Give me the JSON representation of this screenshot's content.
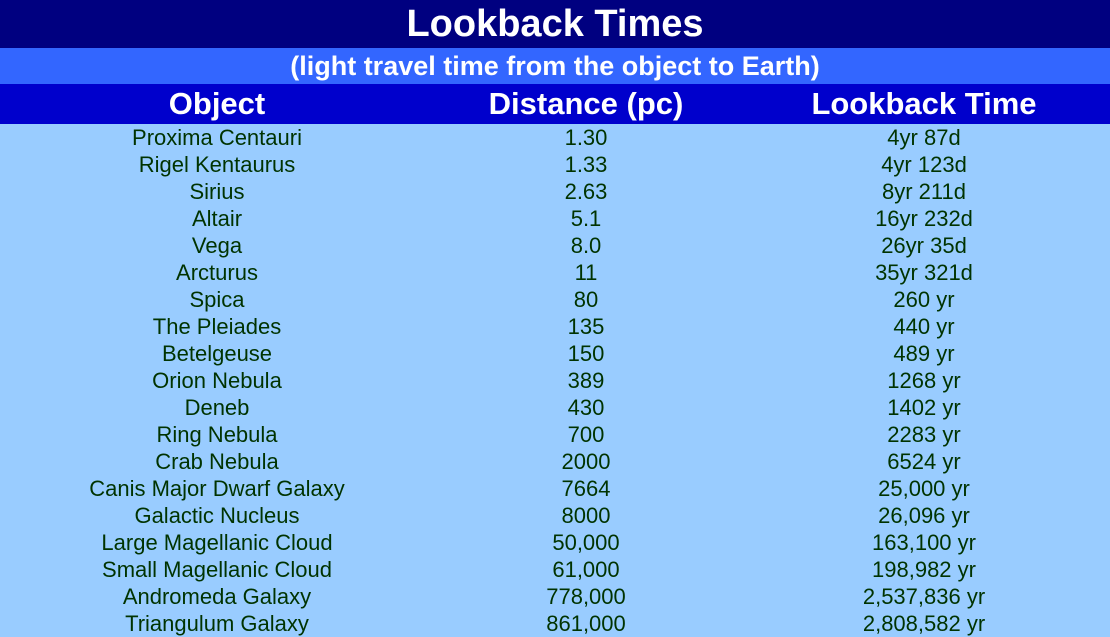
{
  "title": "Lookback Times",
  "subtitle": "(light travel time from the object to Earth)",
  "headers": {
    "object": "Object",
    "distance": "Distance (pc)",
    "lookback": "Lookback Time"
  },
  "colors": {
    "title_bg": "#000080",
    "subtitle_bg": "#3366ff",
    "header_bg": "#0000cc",
    "body_bg": "#99ccff",
    "body_text": "#003300",
    "header_text": "#ffffff"
  },
  "rows": [
    {
      "object": "Proxima Centauri",
      "distance": "1.30",
      "lookback": "4yr 87d"
    },
    {
      "object": "Rigel Kentaurus",
      "distance": "1.33",
      "lookback": "4yr 123d"
    },
    {
      "object": "Sirius",
      "distance": "2.63",
      "lookback": "8yr 211d"
    },
    {
      "object": "Altair",
      "distance": "5.1",
      "lookback": "16yr 232d"
    },
    {
      "object": "Vega",
      "distance": "8.0",
      "lookback": "26yr 35d"
    },
    {
      "object": "Arcturus",
      "distance": "11",
      "lookback": "35yr 321d"
    },
    {
      "object": "Spica",
      "distance": "80",
      "lookback": "260 yr"
    },
    {
      "object": "The Pleiades",
      "distance": "135",
      "lookback": "440 yr"
    },
    {
      "object": "Betelgeuse",
      "distance": "150",
      "lookback": "489 yr"
    },
    {
      "object": "Orion Nebula",
      "distance": "389",
      "lookback": "1268 yr"
    },
    {
      "object": "Deneb",
      "distance": "430",
      "lookback": "1402 yr"
    },
    {
      "object": "Ring Nebula",
      "distance": "700",
      "lookback": "2283 yr"
    },
    {
      "object": "Crab Nebula",
      "distance": "2000",
      "lookback": "6524 yr"
    },
    {
      "object": "Canis Major Dwarf Galaxy",
      "distance": "7664",
      "lookback": "25,000 yr"
    },
    {
      "object": "Galactic Nucleus",
      "distance": "8000",
      "lookback": "26,096 yr"
    },
    {
      "object": "Large Magellanic Cloud",
      "distance": "50,000",
      "lookback": "163,100 yr"
    },
    {
      "object": "Small Magellanic Cloud",
      "distance": "61,000",
      "lookback": "198,982 yr"
    },
    {
      "object": "Andromeda Galaxy",
      "distance": "778,000",
      "lookback": "2,537,836 yr"
    },
    {
      "object": "Triangulum Galaxy",
      "distance": "861,000",
      "lookback": "2,808,582 yr"
    }
  ]
}
